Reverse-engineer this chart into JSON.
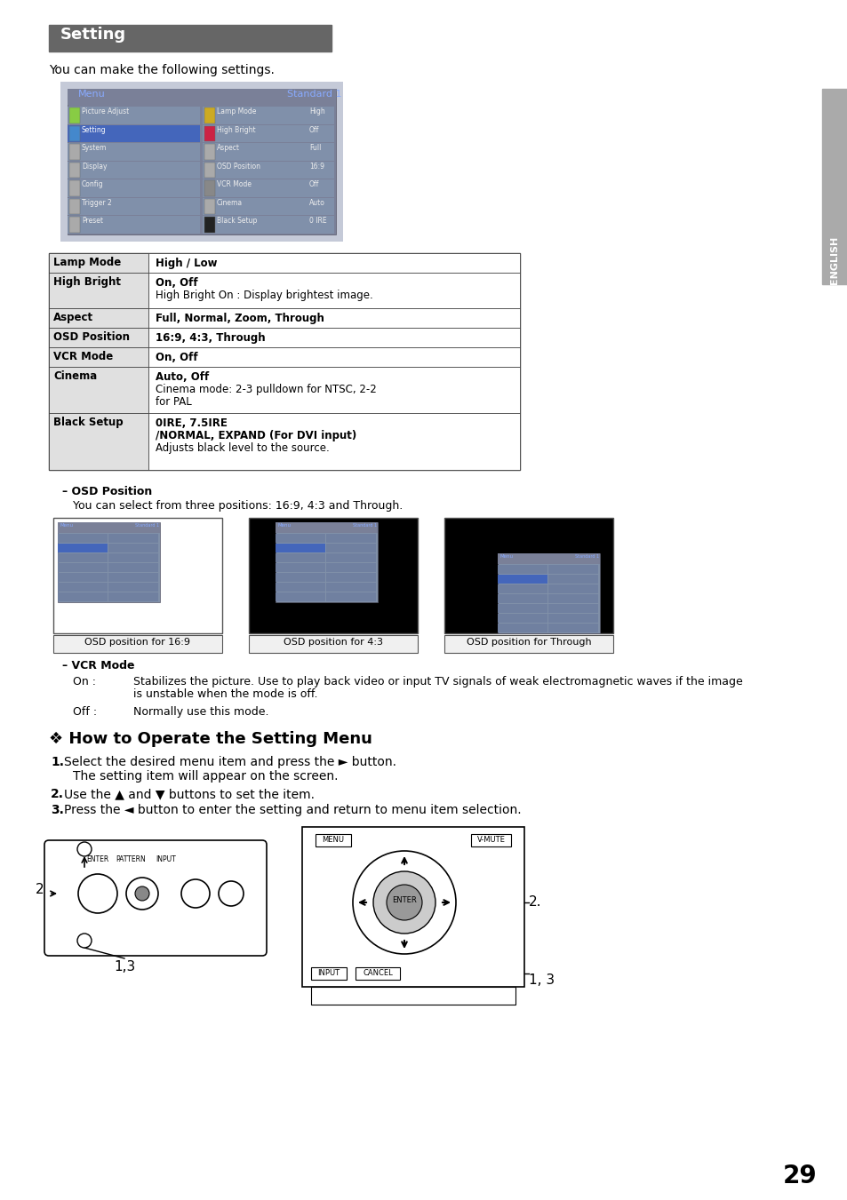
{
  "title": "Setting",
  "title_bg": "#666666",
  "title_color": "#ffffff",
  "page_bg": "#ffffff",
  "page_number": "29",
  "intro_text": "You can make the following settings.",
  "menu_left_items": [
    "Picture Adjust",
    "Setting",
    "System",
    "Display",
    "Config",
    "Trigger 2",
    "Preset"
  ],
  "menu_right_items": [
    [
      "Lamp Mode",
      "High"
    ],
    [
      "High Bright",
      "Off"
    ],
    [
      "Aspect",
      "Full"
    ],
    [
      "OSD Position",
      "16:9"
    ],
    [
      "VCR Mode",
      "Off"
    ],
    [
      "Cinema",
      "Auto"
    ],
    [
      "Black Setup",
      "0 IRE"
    ]
  ],
  "table_rows": [
    {
      "col1": "Lamp Mode",
      "lines": [
        [
          "b",
          "High / Low"
        ]
      ]
    },
    {
      "col1": "High Bright",
      "lines": [
        [
          "b",
          "On, Off"
        ],
        [
          "n",
          "High Bright On : Display brightest image."
        ]
      ]
    },
    {
      "col1": "Aspect",
      "lines": [
        [
          "b",
          "Full, Normal, Zoom, Through"
        ]
      ]
    },
    {
      "col1": "OSD Position",
      "lines": [
        [
          "b",
          "16:9, 4:3, Through"
        ]
      ]
    },
    {
      "col1": "VCR Mode",
      "lines": [
        [
          "b",
          "On, Off"
        ]
      ]
    },
    {
      "col1": "Cinema",
      "lines": [
        [
          "b",
          "Auto, Off"
        ],
        [
          "n",
          "Cinema mode: 2-3 pulldown for NTSC, 2-2"
        ],
        [
          "n",
          "for PAL"
        ]
      ]
    },
    {
      "col1": "Black Setup",
      "lines": [
        [
          "b",
          "0IRE, 7.5IRE"
        ],
        [
          "b",
          "/NORMAL, EXPAND (For DVI input)"
        ],
        [
          "n",
          "Adjusts black level to the source."
        ]
      ]
    }
  ],
  "osd_title": "– OSD Position",
  "osd_text": "You can select from three positions: 16:9, 4:3 and Through.",
  "osd_captions": [
    "OSD position for 16:9",
    "OSD position for 4:3",
    "OSD position for Through"
  ],
  "vcr_title": "– VCR Mode",
  "vcr_on_text": "Stabilizes the picture. Use to play back video or input TV signals of weak electromagnetic waves if the image",
  "vcr_on_text2": "is unstable when the mode is off.",
  "vcr_off_text": "Normally use this mode.",
  "how_title": "❖ How to Operate the Setting Menu",
  "step1a": "Select the desired menu item and press the ► button.",
  "step1b": "The setting item will appear on the screen.",
  "step2": "Use the ▲ and ▼ buttons to set the item.",
  "step3": "Press the ◄ button to enter the setting and return to menu item selection.",
  "english_label": "ENGLISH",
  "sidebar_color": "#aaaaaa"
}
